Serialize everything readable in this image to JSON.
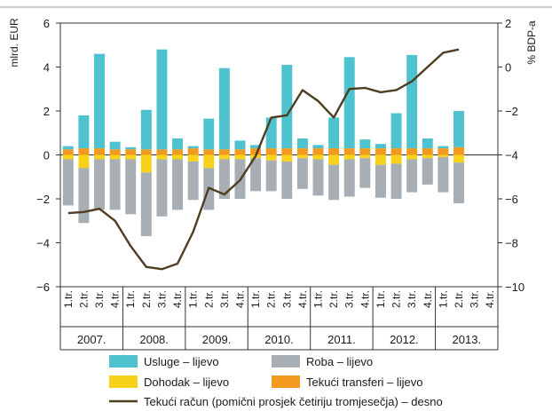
{
  "chart_data": {
    "type": "bar",
    "left_axis_label": "mlrd. EUR",
    "right_axis_label": "% BDP-a",
    "left_ticks": [
      "6",
      "4",
      "2",
      "0",
      "−2",
      "−4",
      "−6"
    ],
    "right_ticks": [
      "2",
      "0",
      "−2",
      "−4",
      "−6",
      "−8",
      "−10"
    ],
    "ylim_left": [
      -6,
      6
    ],
    "ylim_right": [
      -10,
      2
    ],
    "quarter_labels": [
      "1.tr.",
      "2.tr.",
      "3.tr.",
      "4.tr."
    ],
    "years": [
      "2007.",
      "2008.",
      "2009.",
      "2010.",
      "2011.",
      "2012.",
      "2013."
    ],
    "colors": {
      "usluge": "#4ec3cf",
      "roba": "#a7aeb4",
      "dohodak": "#f7d21b",
      "transferi": "#f29a1f",
      "tekuci": "#4f3d21"
    },
    "series": [
      {
        "name": "Usluge – lijevo",
        "values": [
          0.15,
          1.5,
          4.3,
          0.35,
          0.1,
          1.8,
          4.55,
          0.5,
          0.1,
          1.4,
          3.7,
          0.4,
          0.15,
          1.4,
          3.8,
          0.45,
          0.15,
          1.4,
          4.15,
          0.4,
          0.2,
          1.6,
          4.25,
          0.45,
          0.1,
          1.65
        ]
      },
      {
        "name": "Roba – lijevo",
        "values": [
          -2.1,
          -2.5,
          -2.3,
          -2.3,
          -2.5,
          -2.9,
          -2.6,
          -2.3,
          -1.75,
          -1.9,
          -1.8,
          -1.8,
          -1.5,
          -1.4,
          -1.7,
          -1.4,
          -1.65,
          -1.6,
          -1.7,
          -1.35,
          -1.5,
          -1.6,
          -1.5,
          -1.2,
          -1.6,
          -1.85
        ]
      },
      {
        "name": "Dohodak – lijevo",
        "values": [
          -0.2,
          -0.6,
          -0.2,
          -0.2,
          -0.2,
          -0.8,
          -0.2,
          -0.2,
          -0.3,
          -0.6,
          -0.2,
          -0.2,
          -0.15,
          -0.25,
          -0.3,
          -0.15,
          -0.2,
          -0.45,
          -0.2,
          -0.15,
          -0.45,
          -0.4,
          -0.2,
          -0.15,
          -0.1,
          -0.35
        ]
      },
      {
        "name": "Tekući transferi – lijevo",
        "values": [
          0.25,
          0.3,
          0.3,
          0.25,
          0.25,
          0.25,
          0.25,
          0.25,
          0.3,
          0.25,
          0.25,
          0.25,
          0.3,
          0.3,
          0.3,
          0.3,
          0.3,
          0.3,
          0.3,
          0.3,
          0.3,
          0.3,
          0.3,
          0.3,
          0.3,
          0.35
        ]
      },
      {
        "name": "Tekući račun (pomični prosjek četiriju tromjesečja) – desno",
        "axis": "right",
        "values": [
          -6.65,
          -6.6,
          -6.45,
          -7.0,
          -8.15,
          -9.1,
          -9.2,
          -8.95,
          -7.5,
          -5.5,
          -5.8,
          -5.15,
          -4.05,
          -2.3,
          -2.2,
          -1.05,
          -1.55,
          -2.3,
          -1.0,
          -0.95,
          -1.15,
          -1.05,
          -0.65,
          0.0,
          0.65,
          0.8
        ]
      }
    ],
    "grid": false,
    "legend_position": "bottom"
  }
}
